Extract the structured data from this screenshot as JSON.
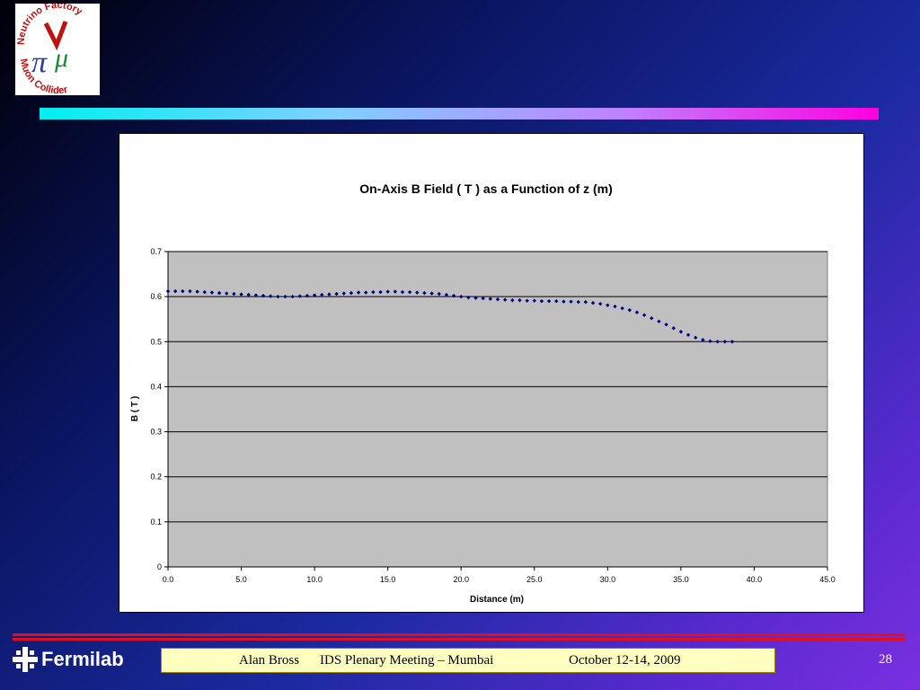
{
  "logo": {
    "top_text": "Neutrino Factory",
    "bottom_text": "Muon Collider"
  },
  "colors": {
    "series": "#00008b",
    "plot_area": "#c0c0c0",
    "footer_bg": "#ffffc0",
    "rule": "#e01020"
  },
  "chart_data": {
    "type": "scatter",
    "title": "On-Axis B Field ( T ) as a Function of z (m)",
    "xlabel": "Distance (m)",
    "ylabel": "B ( T )",
    "xlim": [
      0,
      45
    ],
    "ylim": [
      0,
      0.7
    ],
    "xticks": [
      "0.0",
      "5.0",
      "10.0",
      "15.0",
      "20.0",
      "25.0",
      "30.0",
      "35.0",
      "40.0",
      "45.0"
    ],
    "yticks": [
      "0",
      "0.1",
      "0.2",
      "0.3",
      "0.4",
      "0.5",
      "0.6",
      "0.7"
    ],
    "grid": true,
    "legend": "none",
    "x": [
      0.0,
      0.5,
      1.0,
      1.5,
      2.0,
      2.5,
      3.0,
      3.5,
      4.0,
      4.5,
      5.0,
      5.5,
      6.0,
      6.5,
      7.0,
      7.5,
      8.0,
      8.5,
      9.0,
      9.5,
      10.0,
      10.5,
      11.0,
      11.5,
      12.0,
      12.5,
      13.0,
      13.5,
      14.0,
      14.5,
      15.0,
      15.5,
      16.0,
      16.5,
      17.0,
      17.5,
      18.0,
      18.5,
      19.0,
      19.5,
      20.0,
      20.5,
      21.0,
      21.5,
      22.0,
      22.5,
      23.0,
      23.5,
      24.0,
      24.5,
      25.0,
      25.5,
      26.0,
      26.5,
      27.0,
      27.5,
      28.0,
      28.5,
      29.0,
      29.5,
      30.0,
      30.5,
      31.0,
      31.5,
      32.0,
      32.5,
      33.0,
      33.5,
      34.0,
      34.5,
      35.0,
      35.5,
      36.0,
      36.5,
      37.0,
      37.5,
      38.0,
      38.5
    ],
    "y": [
      0.612,
      0.612,
      0.612,
      0.612,
      0.611,
      0.61,
      0.609,
      0.608,
      0.607,
      0.606,
      0.605,
      0.604,
      0.603,
      0.602,
      0.601,
      0.6,
      0.6,
      0.6,
      0.601,
      0.602,
      0.603,
      0.604,
      0.605,
      0.606,
      0.607,
      0.608,
      0.609,
      0.609,
      0.61,
      0.61,
      0.611,
      0.611,
      0.61,
      0.61,
      0.609,
      0.608,
      0.607,
      0.606,
      0.604,
      0.602,
      0.6,
      0.598,
      0.597,
      0.596,
      0.595,
      0.594,
      0.593,
      0.592,
      0.592,
      0.591,
      0.591,
      0.59,
      0.59,
      0.59,
      0.589,
      0.589,
      0.588,
      0.588,
      0.586,
      0.584,
      0.581,
      0.578,
      0.574,
      0.57,
      0.565,
      0.559,
      0.552,
      0.545,
      0.538,
      0.53,
      0.522,
      0.515,
      0.509,
      0.504,
      0.501,
      0.5,
      0.5,
      0.5
    ]
  },
  "footer": {
    "author": "Alan Bross",
    "meeting": "IDS Plenary Meeting – Mumbai",
    "date": "October 12-14, 2009"
  },
  "page_number": "28",
  "brand": "Fermilab"
}
